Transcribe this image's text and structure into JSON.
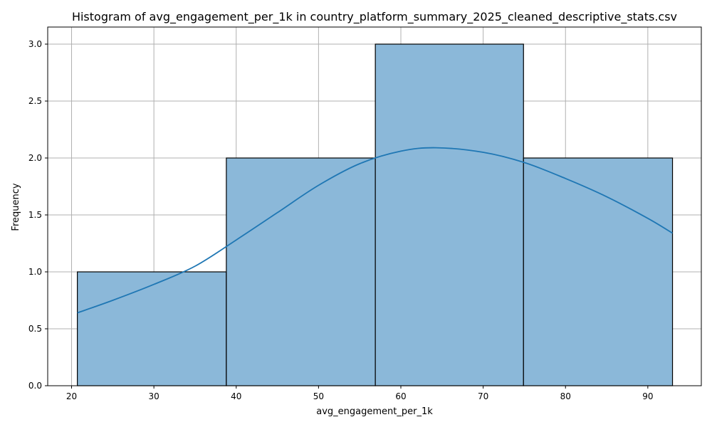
{
  "chart_data": {
    "type": "bar",
    "title": "Histogram of avg_engagement_per_1k in country_platform_summary_2025_cleaned_descriptive_stats.csv",
    "xlabel": "avg_engagement_per_1k",
    "ylabel": "Frequency",
    "xlim": [
      17.1,
      96.5
    ],
    "ylim": [
      0,
      3.15
    ],
    "xticks": [
      20,
      30,
      40,
      50,
      60,
      70,
      80,
      90
    ],
    "xtick_labels": [
      "20",
      "30",
      "40",
      "50",
      "60",
      "70",
      "80",
      "90"
    ],
    "yticks": [
      0,
      0.5,
      1.0,
      1.5,
      2.0,
      2.5,
      3.0
    ],
    "ytick_labels": [
      "0.0",
      "0.5",
      "1.0",
      "1.5",
      "2.0",
      "2.5",
      "3.0"
    ],
    "bins": [
      {
        "x0": 20.7,
        "x1": 38.8,
        "value": 1
      },
      {
        "x0": 38.8,
        "x1": 56.9,
        "value": 2
      },
      {
        "x0": 56.9,
        "x1": 74.9,
        "value": 3
      },
      {
        "x0": 74.9,
        "x1": 93.0,
        "value": 2
      }
    ],
    "kde": {
      "x": [
        20.7,
        25,
        30,
        35,
        40,
        45,
        50,
        55,
        60,
        64.3,
        70,
        75,
        80,
        85,
        90,
        93.0
      ],
      "y": [
        0.64,
        0.75,
        0.89,
        1.05,
        1.28,
        1.52,
        1.76,
        1.95,
        2.06,
        2.09,
        2.05,
        1.96,
        1.82,
        1.66,
        1.47,
        1.34
      ]
    },
    "grid": true,
    "colors": {
      "bar_fill": "#8bb8d9",
      "bar_edge": "#000000",
      "kde_line": "#1f77b4",
      "grid": "#b0b0b0"
    }
  }
}
